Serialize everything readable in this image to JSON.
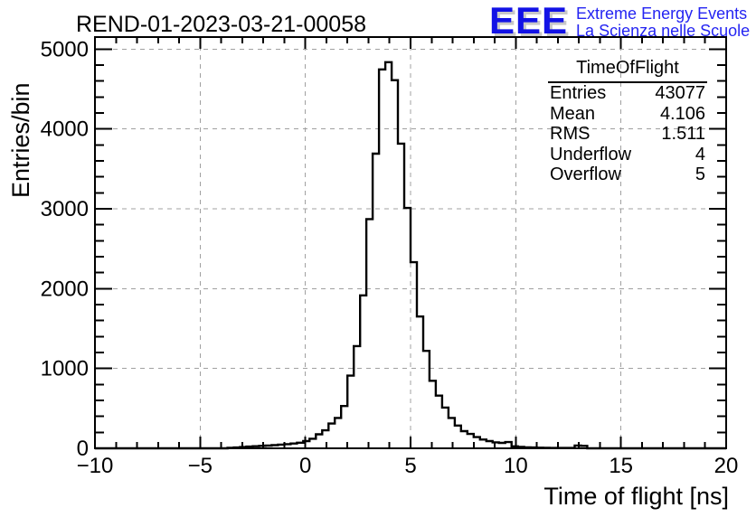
{
  "header": {
    "title": "REND-01-2023-03-21-00058",
    "logo": {
      "acronym": "EEE",
      "line1": "Extreme Energy Events",
      "line2": "La Scienza nelle Scuole",
      "color": "#1212e6",
      "text_color": "#2424f2",
      "shadow_color": "#c8c8c8"
    }
  },
  "stats": {
    "title": "TimeOfFlight",
    "rows": [
      {
        "label": "Entries",
        "value": "43077"
      },
      {
        "label": "Mean",
        "value": "4.106"
      },
      {
        "label": "RMS",
        "value": "1.511"
      },
      {
        "label": "Underflow",
        "value": "4"
      },
      {
        "label": "Overflow",
        "value": "5"
      }
    ]
  },
  "axes": {
    "x": {
      "title": "Time of flight [ns]",
      "min": -10,
      "max": 20,
      "minor_step": 1,
      "major_ticks": [
        -10,
        -5,
        0,
        5,
        10,
        15,
        20
      ],
      "tick_labels": [
        "−10",
        "−5",
        "0",
        "5",
        "10",
        "15",
        "20"
      ],
      "grid_values": [
        -5,
        0,
        5,
        10,
        15
      ]
    },
    "y": {
      "title": "Entries/bin",
      "min": 0,
      "max": 5000,
      "minor_step": 200,
      "major_ticks": [
        0,
        1000,
        2000,
        3000,
        4000,
        5000
      ],
      "tick_labels": [
        "0",
        "1000",
        "2000",
        "3000",
        "4000",
        "5000"
      ],
      "grid_values": [
        1000,
        2000,
        3000,
        4000,
        5000
      ]
    }
  },
  "style": {
    "grid_color": "#a0a0a0",
    "hist_color": "#000000",
    "frame_color": "#000000"
  },
  "chart_data": {
    "type": "histogram-step",
    "title": "REND-01-2023-03-21-00058",
    "xlabel": "Time of flight [ns]",
    "ylabel": "Entries/bin",
    "xlim": [
      -10,
      20
    ],
    "ylim": [
      0,
      5150
    ],
    "grid": true,
    "bin_start": -10,
    "bin_width": 0.3,
    "values": [
      0,
      0,
      0,
      0,
      0,
      0,
      0,
      0,
      0,
      0,
      0,
      0,
      0,
      0,
      0,
      0,
      0,
      0,
      0,
      0,
      0,
      6,
      10,
      16,
      22,
      26,
      30,
      34,
      40,
      46,
      52,
      60,
      70,
      90,
      120,
      175,
      225,
      310,
      380,
      530,
      910,
      1280,
      1915,
      2870,
      3690,
      4745,
      4835,
      4610,
      3815,
      3010,
      2330,
      1650,
      1220,
      845,
      660,
      510,
      380,
      285,
      215,
      180,
      140,
      110,
      90,
      75,
      68,
      78,
      25,
      18,
      12,
      10,
      8,
      6,
      5,
      5,
      4,
      4,
      35,
      30,
      0,
      0,
      0,
      0,
      0,
      0,
      0,
      0,
      0,
      0,
      0,
      0,
      0,
      0,
      0,
      0,
      0,
      0,
      0,
      0,
      0,
      0
    ],
    "stats": {
      "entries": 43077,
      "mean": 4.106,
      "rms": 1.511,
      "underflow": 4,
      "overflow": 5
    }
  }
}
